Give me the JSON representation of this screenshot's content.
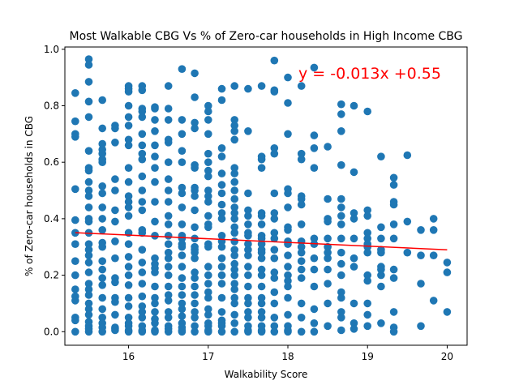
{
  "chart_data": {
    "type": "scatter",
    "title": "Most Walkable CBG Vs % of Zero-car households in High Income CBG",
    "xlabel": "Walkability Score",
    "ylabel": "% of Zero-car households in CBG",
    "xlim": [
      15.2,
      20.25
    ],
    "ylim": [
      -0.048,
      1.008
    ],
    "xticks": [
      16,
      17,
      18,
      19,
      20
    ],
    "xtick_labels": [
      "16",
      "17",
      "18",
      "19",
      "20"
    ],
    "yticks": [
      0.0,
      0.2,
      0.4,
      0.6,
      0.8,
      1.0
    ],
    "ytick_labels": [
      "0.0",
      "0.2",
      "0.4",
      "0.6",
      "0.8",
      "1.0"
    ],
    "grid": false,
    "annotation": "y = -0.013x +0.55",
    "colors": {
      "points": "#1f77b4",
      "regression": "#ff0000",
      "annotation": "#ff0000"
    },
    "regression": {
      "slope": -0.013,
      "intercept": 0.55,
      "x_range": [
        15.33,
        20.0
      ]
    },
    "series": [
      {
        "x": [
          15.33,
          15.33,
          15.33,
          15.33,
          15.33,
          15.33,
          15.33,
          15.33,
          15.33,
          15.33,
          15.33,
          15.33,
          15.33,
          15.33,
          15.33,
          15.33,
          15.5,
          15.5,
          15.5,
          15.5,
          15.5,
          15.5,
          15.5,
          15.5,
          15.5,
          15.5,
          15.5,
          15.5,
          15.5,
          15.5,
          15.5,
          15.5,
          15.5,
          15.5,
          15.5,
          15.5,
          15.5,
          15.5,
          15.5,
          15.5,
          15.5,
          15.5,
          15.5,
          15.5,
          15.5,
          15.5,
          15.67,
          15.67,
          15.67,
          15.67,
          15.67,
          15.67,
          15.67,
          15.67,
          15.67,
          15.67,
          15.67,
          15.67,
          15.67,
          15.67,
          15.67,
          15.67,
          15.67,
          15.67,
          15.67,
          15.67,
          15.67,
          15.67,
          15.67,
          15.67,
          15.83,
          15.83,
          15.83,
          15.83,
          15.83,
          15.83,
          15.83,
          15.83,
          15.83,
          15.83,
          15.83,
          15.83,
          15.83,
          15.83,
          15.83,
          15.83,
          15.83,
          16.0,
          16.0,
          16.0,
          16.0,
          16.0,
          16.0,
          16.0,
          16.0,
          16.0,
          16.0,
          16.0,
          16.0,
          16.0,
          16.0,
          16.0,
          16.0,
          16.0,
          16.0,
          16.0,
          16.0,
          16.0,
          16.0,
          16.0,
          16.0,
          16.0,
          16.0,
          16.0,
          16.17,
          16.17,
          16.17,
          16.17,
          16.17,
          16.17,
          16.17,
          16.17,
          16.17,
          16.17,
          16.17,
          16.17,
          16.17,
          16.17,
          16.17,
          16.17,
          16.17,
          16.17,
          16.17,
          16.17,
          16.17,
          16.17,
          16.17,
          16.17,
          16.17,
          16.17,
          16.33,
          16.33,
          16.33,
          16.33,
          16.33,
          16.33,
          16.33,
          16.33,
          16.33,
          16.33,
          16.33,
          16.33,
          16.33,
          16.33,
          16.33,
          16.33,
          16.33,
          16.33,
          16.33,
          16.33,
          16.33,
          16.33,
          16.33,
          16.5,
          16.5,
          16.5,
          16.5,
          16.5,
          16.5,
          16.5,
          16.5,
          16.5,
          16.5,
          16.5,
          16.5,
          16.5,
          16.5,
          16.5,
          16.5,
          16.5,
          16.5,
          16.5,
          16.5,
          16.5,
          16.5,
          16.5,
          16.5,
          16.5,
          16.67,
          16.67,
          16.67,
          16.67,
          16.67,
          16.67,
          16.67,
          16.67,
          16.67,
          16.67,
          16.67,
          16.67,
          16.67,
          16.67,
          16.67,
          16.67,
          16.67,
          16.67,
          16.67,
          16.67,
          16.67,
          16.67,
          16.67,
          16.67,
          16.67,
          16.83,
          16.83,
          16.83,
          16.83,
          16.83,
          16.83,
          16.83,
          16.83,
          16.83,
          16.83,
          16.83,
          16.83,
          16.83,
          16.83,
          16.83,
          16.83,
          16.83,
          16.83,
          16.83,
          16.83,
          16.83,
          16.83,
          16.83,
          16.83,
          16.83,
          17.0,
          17.0,
          17.0,
          17.0,
          17.0,
          17.0,
          17.0,
          17.0,
          17.0,
          17.0,
          17.0,
          17.0,
          17.0,
          17.0,
          17.0,
          17.0,
          17.0,
          17.0,
          17.0,
          17.0,
          17.0,
          17.0,
          17.0,
          17.0,
          17.0,
          17.0,
          17.0,
          17.17,
          17.17,
          17.17,
          17.17,
          17.17,
          17.17,
          17.17,
          17.17,
          17.17,
          17.17,
          17.17,
          17.17,
          17.17,
          17.17,
          17.17,
          17.17,
          17.17,
          17.17,
          17.17,
          17.17,
          17.17,
          17.17,
          17.17,
          17.33,
          17.33,
          17.33,
          17.33,
          17.33,
          17.33,
          17.33,
          17.33,
          17.33,
          17.33,
          17.33,
          17.33,
          17.33,
          17.33,
          17.33,
          17.33,
          17.33,
          17.33,
          17.33,
          17.33,
          17.33,
          17.33,
          17.33,
          17.33,
          17.33,
          17.33,
          17.33,
          17.33,
          17.5,
          17.5,
          17.5,
          17.5,
          17.5,
          17.5,
          17.5,
          17.5,
          17.5,
          17.5,
          17.5,
          17.5,
          17.5,
          17.5,
          17.5,
          17.5,
          17.5,
          17.5,
          17.5,
          17.5,
          17.5,
          17.67,
          17.67,
          17.67,
          17.67,
          17.67,
          17.67,
          17.67,
          17.67,
          17.67,
          17.67,
          17.67,
          17.67,
          17.67,
          17.67,
          17.67,
          17.67,
          17.67,
          17.67,
          17.67,
          17.67,
          17.67,
          17.67,
          17.67,
          17.83,
          17.83,
          17.83,
          17.83,
          17.83,
          17.83,
          17.83,
          17.83,
          17.83,
          17.83,
          17.83,
          17.83,
          17.83,
          17.83,
          17.83,
          17.83,
          17.83,
          17.83,
          17.83,
          18.0,
          18.0,
          18.0,
          18.0,
          18.0,
          18.0,
          18.0,
          18.0,
          18.0,
          18.0,
          18.0,
          18.0,
          18.0,
          18.0,
          18.0,
          18.0,
          18.0,
          18.0,
          18.0,
          18.0,
          18.17,
          18.17,
          18.17,
          18.17,
          18.17,
          18.17,
          18.17,
          18.17,
          18.17,
          18.17,
          18.17,
          18.17,
          18.17,
          18.17,
          18.17,
          18.17,
          18.33,
          18.33,
          18.33,
          18.33,
          18.33,
          18.33,
          18.33,
          18.33,
          18.33,
          18.33,
          18.33,
          18.33,
          18.5,
          18.5,
          18.5,
          18.5,
          18.5,
          18.5,
          18.5,
          18.5,
          18.5,
          18.5,
          18.5,
          18.5,
          18.67,
          18.67,
          18.67,
          18.67,
          18.67,
          18.67,
          18.67,
          18.67,
          18.67,
          18.67,
          18.67,
          18.67,
          18.67,
          18.67,
          18.67,
          18.67,
          18.67,
          18.83,
          18.83,
          18.83,
          18.83,
          18.83,
          18.83,
          18.83,
          18.83,
          18.83,
          18.83,
          19.0,
          19.0,
          19.0,
          19.0,
          19.0,
          19.0,
          19.0,
          19.0,
          19.0,
          19.0,
          19.0,
          19.0,
          19.0,
          19.17,
          19.17,
          19.17,
          19.17,
          19.17,
          19.17,
          19.17,
          19.17,
          19.17,
          19.17,
          19.33,
          19.33,
          19.33,
          19.33,
          19.33,
          19.33,
          19.33,
          19.33,
          19.33,
          19.33,
          19.33,
          19.5,
          19.5,
          19.5,
          19.67,
          19.67,
          19.67,
          19.67,
          19.83,
          19.83,
          19.83,
          19.83,
          20.0,
          20.0,
          20.0
        ],
        "y": [
          0.845,
          0.745,
          0.7,
          0.69,
          0.505,
          0.395,
          0.35,
          0.31,
          0.25,
          0.2,
          0.15,
          0.125,
          0.11,
          0.05,
          0.04,
          0.0,
          0.965,
          0.945,
          0.885,
          0.815,
          0.76,
          0.64,
          0.58,
          0.53,
          0.5,
          0.48,
          0.44,
          0.4,
          0.39,
          0.35,
          0.31,
          0.27,
          0.245,
          0.21,
          0.17,
          0.13,
          0.1,
          0.08,
          0.06,
          0.035,
          0.02,
          0.01,
          0.0,
          0.15,
          0.29,
          0.57,
          0.82,
          0.72,
          0.665,
          0.645,
          0.63,
          0.6,
          0.515,
          0.49,
          0.44,
          0.4,
          0.36,
          0.315,
          0.3,
          0.25,
          0.22,
          0.19,
          0.165,
          0.12,
          0.08,
          0.05,
          0.03,
          0.015,
          0.0,
          0.61,
          0.73,
          0.72,
          0.67,
          0.54,
          0.5,
          0.43,
          0.39,
          0.32,
          0.26,
          0.19,
          0.175,
          0.12,
          0.105,
          0.06,
          0.015,
          0.01,
          0.005,
          0.87,
          0.86,
          0.85,
          0.8,
          0.76,
          0.73,
          0.68,
          0.66,
          0.58,
          0.53,
          0.48,
          0.46,
          0.44,
          0.41,
          0.35,
          0.31,
          0.265,
          0.23,
          0.2,
          0.165,
          0.12,
          0.09,
          0.05,
          0.03,
          0.02,
          0.0,
          0.005,
          0.87,
          0.855,
          0.79,
          0.78,
          0.76,
          0.7,
          0.66,
          0.63,
          0.61,
          0.55,
          0.5,
          0.46,
          0.43,
          0.36,
          0.35,
          0.29,
          0.245,
          0.21,
          0.17,
          0.125,
          0.09,
          0.07,
          0.05,
          0.02,
          0.0,
          0.005,
          0.795,
          0.79,
          0.75,
          0.71,
          0.66,
          0.62,
          0.58,
          0.53,
          0.46,
          0.39,
          0.34,
          0.26,
          0.24,
          0.21,
          0.16,
          0.12,
          0.1,
          0.07,
          0.045,
          0.03,
          0.0,
          0.005,
          0.225,
          0.87,
          0.79,
          0.75,
          0.68,
          0.67,
          0.6,
          0.54,
          0.5,
          0.46,
          0.41,
          0.38,
          0.34,
          0.31,
          0.28,
          0.26,
          0.23,
          0.2,
          0.16,
          0.13,
          0.11,
          0.07,
          0.05,
          0.02,
          0.01,
          0.0,
          0.93,
          0.75,
          0.7,
          0.64,
          0.6,
          0.51,
          0.49,
          0.44,
          0.38,
          0.34,
          0.33,
          0.31,
          0.3,
          0.27,
          0.23,
          0.19,
          0.16,
          0.13,
          0.1,
          0.08,
          0.055,
          0.03,
          0.015,
          0.0,
          0.005,
          0.915,
          0.83,
          0.74,
          0.72,
          0.59,
          0.58,
          0.51,
          0.5,
          0.48,
          0.43,
          0.37,
          0.33,
          0.3,
          0.29,
          0.28,
          0.26,
          0.21,
          0.19,
          0.16,
          0.13,
          0.1,
          0.07,
          0.05,
          0.02,
          0.0,
          0.8,
          0.78,
          0.75,
          0.7,
          0.63,
          0.6,
          0.57,
          0.55,
          0.5,
          0.48,
          0.46,
          0.41,
          0.38,
          0.37,
          0.31,
          0.3,
          0.23,
          0.2,
          0.17,
          0.14,
          0.12,
          0.08,
          0.06,
          0.03,
          0.02,
          0.0,
          0.005,
          0.86,
          0.82,
          0.65,
          0.62,
          0.56,
          0.52,
          0.49,
          0.45,
          0.42,
          0.4,
          0.34,
          0.32,
          0.3,
          0.26,
          0.23,
          0.2,
          0.17,
          0.12,
          0.07,
          0.04,
          0.03,
          0.02,
          0.0,
          0.87,
          0.75,
          0.73,
          0.71,
          0.68,
          0.58,
          0.56,
          0.53,
          0.5,
          0.47,
          0.44,
          0.42,
          0.4,
          0.37,
          0.35,
          0.32,
          0.29,
          0.27,
          0.24,
          0.22,
          0.2,
          0.17,
          0.15,
          0.12,
          0.1,
          0.06,
          0.03,
          0.0,
          0.86,
          0.71,
          0.49,
          0.43,
          0.41,
          0.38,
          0.35,
          0.34,
          0.31,
          0.29,
          0.27,
          0.23,
          0.2,
          0.16,
          0.12,
          0.1,
          0.07,
          0.05,
          0.02,
          0.0,
          0.005,
          0.87,
          0.62,
          0.61,
          0.58,
          0.42,
          0.41,
          0.38,
          0.34,
          0.33,
          0.31,
          0.29,
          0.28,
          0.26,
          0.22,
          0.2,
          0.16,
          0.12,
          0.1,
          0.07,
          0.05,
          0.02,
          0.0,
          0.005,
          0.96,
          0.855,
          0.85,
          0.65,
          0.63,
          0.49,
          0.42,
          0.4,
          0.35,
          0.33,
          0.29,
          0.26,
          0.21,
          0.19,
          0.14,
          0.1,
          0.05,
          0.02,
          0.0,
          0.9,
          0.81,
          0.7,
          0.505,
          0.49,
          0.44,
          0.37,
          0.36,
          0.32,
          0.31,
          0.27,
          0.23,
          0.2,
          0.18,
          0.16,
          0.12,
          0.06,
          0.02,
          0.0,
          0.005,
          0.87,
          0.63,
          0.61,
          0.48,
          0.47,
          0.45,
          0.38,
          0.32,
          0.3,
          0.28,
          0.25,
          0.22,
          0.19,
          0.1,
          0.05,
          0.0,
          0.935,
          0.695,
          0.65,
          0.58,
          0.33,
          0.31,
          0.26,
          0.22,
          0.16,
          0.08,
          0.03,
          0.0,
          0.655,
          0.47,
          0.4,
          0.39,
          0.33,
          0.3,
          0.28,
          0.26,
          0.22,
          0.17,
          0.1,
          0.02,
          0.805,
          0.77,
          0.71,
          0.59,
          0.47,
          0.44,
          0.41,
          0.38,
          0.33,
          0.28,
          0.24,
          0.2,
          0.14,
          0.12,
          0.07,
          0.05,
          0.005,
          0.8,
          0.565,
          0.42,
          0.4,
          0.33,
          0.26,
          0.23,
          0.1,
          0.03,
          0.01,
          0.78,
          0.43,
          0.41,
          0.35,
          0.33,
          0.31,
          0.3,
          0.28,
          0.2,
          0.18,
          0.1,
          0.06,
          0.02,
          0.62,
          0.37,
          0.33,
          0.29,
          0.28,
          0.23,
          0.22,
          0.2,
          0.16,
          0.03,
          0.545,
          0.52,
          0.46,
          0.45,
          0.38,
          0.33,
          0.22,
          0.19,
          0.07,
          0.015,
          0.0,
          0.625,
          0.39,
          0.28,
          0.36,
          0.27,
          0.17,
          0.02,
          0.4,
          0.36,
          0.27,
          0.11,
          0.245,
          0.21,
          0.07
        ]
      }
    ]
  }
}
